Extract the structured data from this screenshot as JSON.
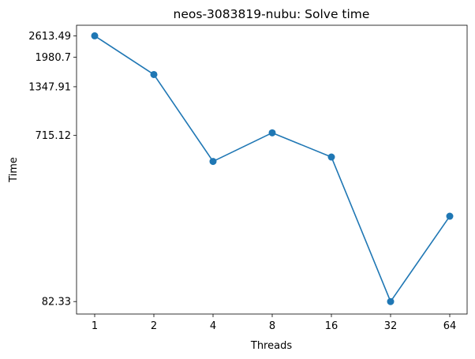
{
  "chart_data": {
    "type": "line",
    "title": "neos-3083819-nubu: Solve time",
    "xlabel": "Threads",
    "ylabel": "Time",
    "x_scale": "log2",
    "y_scale": "log",
    "x": [
      1,
      2,
      4,
      8,
      16,
      32,
      64
    ],
    "x_tick_labels": [
      "1",
      "2",
      "4",
      "8",
      "16",
      "32",
      "64"
    ],
    "y_ticks": [
      2613.49,
      1980.7,
      1347.91,
      715.12,
      82.33
    ],
    "y_tick_labels": [
      "2613.49",
      "1980.7",
      "1347.91",
      "715.12",
      "82.33"
    ],
    "series": [
      {
        "values": [
          2613.49,
          1580,
          510,
          740,
          540,
          82.33,
          250
        ],
        "color": "#1f77b4",
        "marker": "circle"
      }
    ],
    "ylim": [
      70,
      3000
    ],
    "grid": false,
    "legend": false
  }
}
